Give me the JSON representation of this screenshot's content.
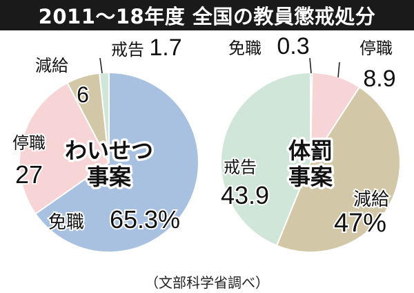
{
  "title": "2011〜18年度 全国の教員懲戒処分",
  "source": "（文部科学省調べ）",
  "colors": {
    "menshoku": "#a9c1e0",
    "teishoku": "#f7d4d6",
    "genkyu": "#d2c7a6",
    "kaikoku": "#cfe6d8",
    "stroke": "#ffffff",
    "title_bg": "#1a1a1a"
  },
  "chart_data": [
    {
      "type": "pie",
      "center_label": [
        "わいせつ",
        "事案"
      ],
      "slices": [
        {
          "label": "免職",
          "value_text": "65.3%",
          "value": 65.3,
          "color_key": "menshoku"
        },
        {
          "label": "停職",
          "value_text": "27",
          "value": 27,
          "color_key": "teishoku"
        },
        {
          "label": "減給",
          "value_text": "6",
          "value": 6,
          "color_key": "genkyu"
        },
        {
          "label": "戒告",
          "value_text": "1.7",
          "value": 1.7,
          "color_key": "kaikoku"
        }
      ]
    },
    {
      "type": "pie",
      "center_label": [
        "体罰",
        "事案"
      ],
      "slices": [
        {
          "label": "免職",
          "value_text": "0.3",
          "value": 0.3,
          "color_key": "menshoku"
        },
        {
          "label": "停職",
          "value_text": "8.9",
          "value": 8.9,
          "color_key": "teishoku"
        },
        {
          "label": "減給",
          "value_text": "47%",
          "value": 47,
          "color_key": "genkyu"
        },
        {
          "label": "戒告",
          "value_text": "43.9",
          "value": 43.9,
          "color_key": "kaikoku"
        }
      ]
    }
  ]
}
